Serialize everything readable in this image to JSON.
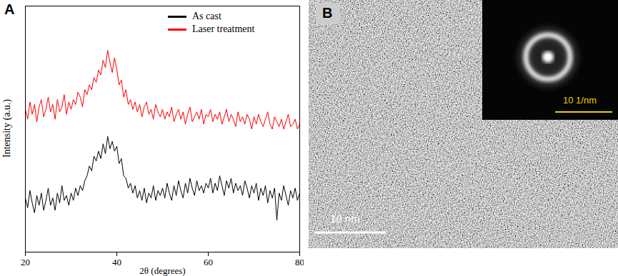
{
  "chart_data": {
    "type": "line",
    "panel_label": "A",
    "x_label": "2θ (degrees)",
    "y_label": "Intensity (a.u.)",
    "xlim": [
      20,
      80
    ],
    "xticks": [
      20,
      40,
      60,
      80
    ],
    "ylim": [
      0,
      100
    ],
    "yticks": [],
    "tick_labels": "x",
    "legend": "upper right",
    "x": [
      20,
      20.5,
      21,
      21.5,
      22,
      22.5,
      23,
      23.5,
      24,
      24.5,
      25,
      25.5,
      26,
      26.5,
      27,
      27.5,
      28,
      28.5,
      29,
      29.5,
      30,
      30.5,
      31,
      31.5,
      32,
      32.5,
      33,
      33.5,
      34,
      34.5,
      35,
      35.5,
      36,
      36.5,
      37,
      37.5,
      38,
      38.5,
      39,
      39.5,
      40,
      40.5,
      41,
      41.5,
      42,
      42.5,
      43,
      43.5,
      44,
      44.5,
      45,
      45.5,
      46,
      46.5,
      47,
      47.5,
      48,
      48.5,
      49,
      49.5,
      50,
      50.5,
      51,
      51.5,
      52,
      52.5,
      53,
      53.5,
      54,
      54.5,
      55,
      55.5,
      56,
      56.5,
      57,
      57.5,
      58,
      58.5,
      59,
      59.5,
      60,
      60.5,
      61,
      61.5,
      62,
      62.5,
      63,
      63.5,
      64,
      64.5,
      65,
      65.5,
      66,
      66.5,
      67,
      67.5,
      68,
      68.5,
      69,
      69.5,
      70,
      70.5,
      71,
      71.5,
      72,
      72.5,
      73,
      73.5,
      74,
      74.5,
      75,
      75.5,
      76,
      76.5,
      77,
      77.5,
      78,
      78.5,
      79,
      79.5,
      80
    ],
    "series": [
      {
        "name": "As cast",
        "color": "#000000",
        "values": [
          22,
          18,
          25,
          20,
          16,
          23,
          19,
          24,
          17,
          21,
          26,
          19,
          22,
          17,
          24,
          20,
          27,
          21,
          23,
          19,
          24,
          21,
          26,
          23,
          27,
          25,
          29,
          31,
          35,
          33,
          39,
          37,
          41,
          38,
          44,
          40,
          47,
          42,
          45,
          41,
          43,
          36,
          38,
          31,
          30,
          26,
          28,
          24,
          27,
          22,
          25,
          21,
          26,
          20,
          24,
          22,
          27,
          21,
          25,
          23,
          26,
          22,
          28,
          24,
          21,
          27,
          23,
          29,
          25,
          22,
          28,
          24,
          30,
          26,
          23,
          29,
          25,
          27,
          24,
          28,
          26,
          30,
          24,
          28,
          25,
          31,
          27,
          23,
          29,
          26,
          30,
          24,
          28,
          25,
          27,
          23,
          29,
          26,
          22,
          27,
          24,
          28,
          21,
          26,
          23,
          27,
          20,
          25,
          22,
          26,
          13,
          24,
          21,
          27,
          23,
          19,
          25,
          22,
          26,
          21,
          24
        ]
      },
      {
        "name": "Laser treatment",
        "color": "#ff0000",
        "values": [
          58,
          54,
          61,
          56,
          60,
          53,
          59,
          62,
          55,
          58,
          63,
          57,
          60,
          54,
          62,
          57,
          59,
          64,
          56,
          61,
          58,
          62,
          60,
          65,
          63,
          59,
          66,
          64,
          68,
          66,
          71,
          69,
          74,
          72,
          78,
          75,
          82,
          77,
          73,
          79,
          74,
          68,
          70,
          63,
          66,
          60,
          62,
          58,
          61,
          57,
          60,
          55,
          59,
          61,
          56,
          58,
          54,
          60,
          57,
          55,
          58,
          54,
          57,
          55,
          59,
          53,
          56,
          58,
          54,
          57,
          52,
          56,
          59,
          53,
          55,
          57,
          54,
          58,
          52,
          56,
          55,
          58,
          53,
          56,
          54,
          57,
          52,
          55,
          58,
          53,
          56,
          54,
          51,
          57,
          53,
          55,
          52,
          56,
          54,
          50,
          55,
          52,
          56,
          53,
          51,
          54,
          57,
          52,
          50,
          55,
          53,
          51,
          54,
          50,
          53,
          56,
          51,
          52,
          54,
          50,
          52
        ]
      }
    ]
  },
  "image_panel": {
    "panel_label": "B",
    "scale_bar": "10 nm",
    "inset": {
      "scale_bar": "10 1/nm"
    }
  }
}
